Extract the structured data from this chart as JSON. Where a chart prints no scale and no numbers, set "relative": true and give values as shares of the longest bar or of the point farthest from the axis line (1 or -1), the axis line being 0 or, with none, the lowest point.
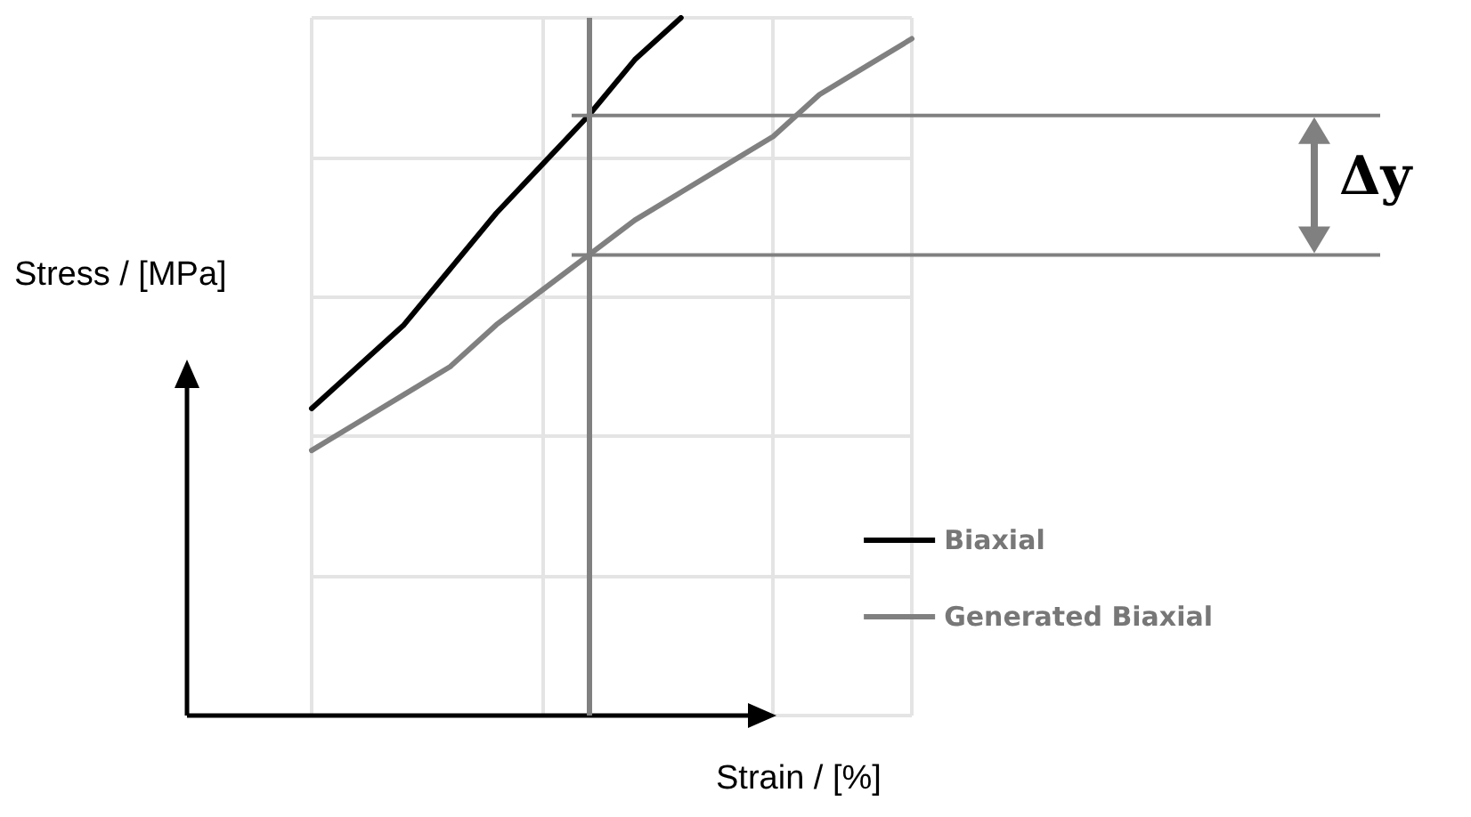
{
  "chart_data": {
    "type": "line",
    "relative": true,
    "xlabel": "Strain / [%]",
    "ylabel": "Stress / [MPa]",
    "categories": [
      null,
      null,
      null,
      null,
      null,
      null,
      null,
      null,
      null,
      null,
      null,
      null,
      null,
      null
    ],
    "series": [
      {
        "name": "Biaxial",
        "color": "#000000",
        "values": [
          0.44,
          0.5,
          0.56,
          0.64,
          0.72,
          0.79,
          0.86,
          0.94,
          1.0,
          null,
          null,
          null,
          null,
          null
        ]
      },
      {
        "name": "Generated Biaxial",
        "color": "#808080",
        "values": [
          0.38,
          0.42,
          0.46,
          0.5,
          0.56,
          0.61,
          0.66,
          0.71,
          0.75,
          0.79,
          0.83,
          0.89,
          0.93,
          0.97
        ]
      }
    ],
    "ref_lines": [
      {
        "axis": "y",
        "value": 0.86,
        "color": "#808080"
      },
      {
        "axis": "y",
        "value": 0.66,
        "color": "#808080"
      }
    ],
    "annotations": [
      "Δy"
    ],
    "grid": true,
    "legend": "bottom right",
    "marker": "none",
    "line_style": "solid"
  }
}
